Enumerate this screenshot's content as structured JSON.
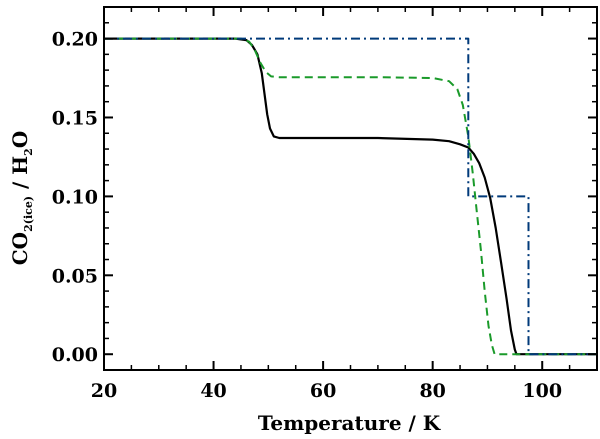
{
  "chart_data": {
    "type": "line",
    "title": "",
    "xlabel": "Temperature / K",
    "ylabel": {
      "main1": "CO",
      "sub1": "2(ice)",
      "main2": " / H",
      "sub2": "2",
      "main3": "O"
    },
    "xlim": [
      20,
      110
    ],
    "ylim": [
      -0.01,
      0.22
    ],
    "xticks": [
      20,
      40,
      60,
      80,
      100
    ],
    "yticks": [
      0.0,
      0.05,
      0.1,
      0.15,
      0.2
    ],
    "xtick_labels": [
      "20",
      "40",
      "60",
      "80",
      "100"
    ],
    "ytick_labels": [
      "0.00",
      "0.05",
      "0.10",
      "0.15",
      "0.20"
    ],
    "grid": false,
    "legend": "none",
    "series": [
      {
        "style": "solid",
        "color": "#000000",
        "x": [
          20,
          44,
          46,
          47,
          48,
          48.8,
          49.3,
          49.8,
          50.3,
          51,
          52,
          55,
          60,
          70,
          80,
          83,
          85,
          86.5,
          87.5,
          88.5,
          89.5,
          90.5,
          91.5,
          92.5,
          93.5,
          94.3,
          95,
          95.3,
          96,
          110
        ],
        "y": [
          0.2,
          0.2,
          0.199,
          0.196,
          0.19,
          0.178,
          0.165,
          0.152,
          0.143,
          0.138,
          0.137,
          0.137,
          0.137,
          0.137,
          0.136,
          0.135,
          0.133,
          0.131,
          0.127,
          0.121,
          0.112,
          0.099,
          0.08,
          0.058,
          0.035,
          0.015,
          0.003,
          0.0,
          0.0,
          0.0
        ]
      },
      {
        "style": "dashed",
        "color": "#1a9a2a",
        "x": [
          20,
          45,
          46.5,
          47.5,
          48.5,
          49.5,
          50.5,
          52,
          55,
          60,
          70,
          80,
          83,
          84.5,
          85.5,
          86.5,
          87.3,
          88,
          88.8,
          89.5,
          90.2,
          90.8,
          91.3,
          92,
          110
        ],
        "y": [
          0.2,
          0.2,
          0.198,
          0.193,
          0.185,
          0.179,
          0.176,
          0.1755,
          0.1755,
          0.1755,
          0.1755,
          0.175,
          0.173,
          0.168,
          0.158,
          0.138,
          0.115,
          0.092,
          0.066,
          0.04,
          0.018,
          0.006,
          0.0,
          0.0,
          0.0
        ]
      },
      {
        "style": "dashdot",
        "color": "#003a7a",
        "x": [
          20,
          86.5,
          86.5,
          97.5,
          97.5,
          110
        ],
        "y": [
          0.2,
          0.2,
          0.1,
          0.1,
          0.0,
          0.0
        ]
      }
    ]
  }
}
